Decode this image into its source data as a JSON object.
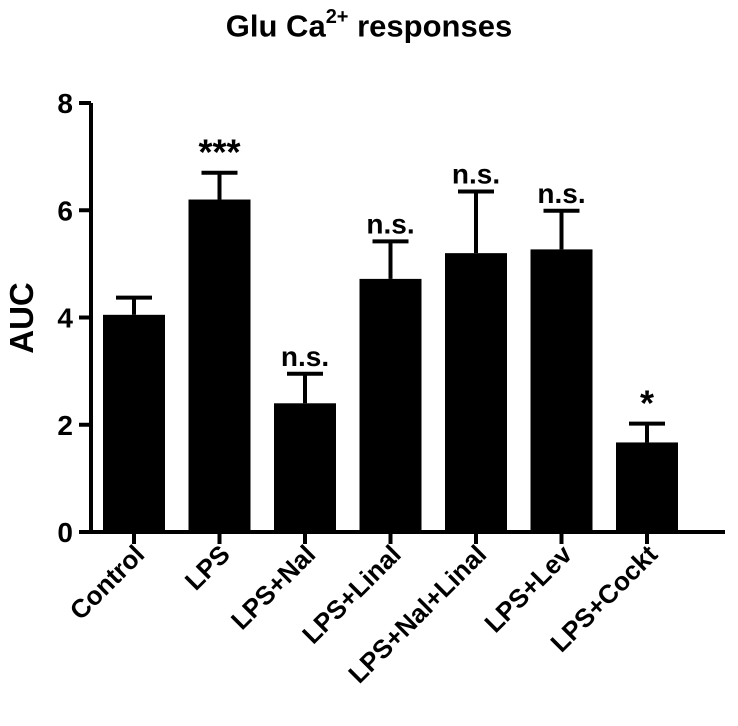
{
  "chart_data": {
    "type": "bar",
    "title": {
      "prefix": "Glu Ca",
      "superscript": "2+",
      "suffix": " responses"
    },
    "ylabel": "AUC",
    "xlabel": "",
    "ylim": [
      0,
      8
    ],
    "yticks": [
      "0",
      "2",
      "4",
      "6",
      "8"
    ],
    "categories": [
      "Control",
      "LPS",
      "LPS+Nal",
      "LPS+Linal",
      "LPS+Nal+Linal",
      "LPS+Lev",
      "LPS+Cockt"
    ],
    "values": [
      4.05,
      6.2,
      2.4,
      4.72,
      5.2,
      5.27,
      1.67
    ],
    "errors": [
      0.32,
      0.5,
      0.55,
      0.7,
      1.15,
      0.72,
      0.35
    ],
    "annotations": [
      "",
      "***",
      "n.s.",
      "n.s.",
      "n.s.",
      "n.s.",
      "*"
    ],
    "bar_color": "#000000",
    "grid": false,
    "legend": "none"
  }
}
